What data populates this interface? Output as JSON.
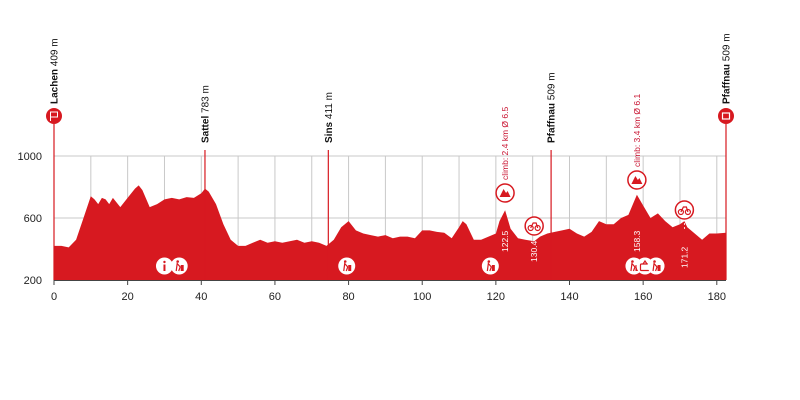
{
  "chart_data": {
    "type": "area",
    "xlabel": "",
    "ylabel": "",
    "x_ticks": [
      0,
      20,
      40,
      60,
      80,
      100,
      120,
      140,
      160,
      180
    ],
    "y_ticks": [
      200,
      600,
      1000
    ],
    "xlim": [
      0,
      182.5
    ],
    "ylim": [
      200,
      1000
    ],
    "colors": {
      "fill": "#d71920",
      "marker": "#d71920",
      "grid": "#c8c8c8"
    },
    "profile": {
      "x": [
        0,
        2,
        4,
        6,
        8,
        10,
        11,
        12,
        13,
        14,
        15,
        16,
        18,
        20,
        22,
        23,
        24,
        26,
        28,
        30,
        32,
        34,
        36,
        38,
        40,
        41,
        42,
        44,
        46,
        48,
        50,
        52,
        54,
        56,
        58,
        60,
        62,
        64,
        66,
        68,
        70,
        72,
        74,
        76,
        78,
        80,
        82,
        84,
        86,
        88,
        90,
        92,
        94,
        96,
        98,
        100,
        102,
        104,
        106,
        108,
        110,
        111,
        112,
        114,
        116,
        118,
        120,
        121,
        122.5,
        124,
        126,
        128,
        130.4,
        132,
        134,
        136,
        138,
        140,
        142,
        144,
        146,
        148,
        150,
        152,
        154,
        156,
        158.3,
        160,
        162,
        164,
        166,
        168,
        170,
        171.2,
        172,
        174,
        176,
        178,
        180,
        182.5
      ],
      "y": [
        420,
        420,
        410,
        460,
        600,
        740,
        720,
        690,
        730,
        720,
        690,
        730,
        670,
        730,
        790,
        810,
        780,
        670,
        690,
        720,
        730,
        720,
        735,
        730,
        760,
        790,
        770,
        690,
        560,
        460,
        420,
        420,
        440,
        460,
        440,
        450,
        440,
        450,
        460,
        440,
        450,
        440,
        420,
        460,
        540,
        580,
        520,
        500,
        490,
        480,
        490,
        470,
        480,
        480,
        470,
        520,
        520,
        510,
        505,
        470,
        540,
        580,
        560,
        460,
        460,
        480,
        500,
        580,
        650,
        530,
        470,
        460,
        450,
        480,
        500,
        510,
        520,
        530,
        500,
        480,
        510,
        580,
        560,
        560,
        600,
        620,
        750,
        680,
        600,
        630,
        580,
        540,
        560,
        580,
        540,
        500,
        460,
        500,
        500,
        505
      ]
    },
    "places": [
      {
        "km": 0,
        "name": "Lachen",
        "alt": "409 m",
        "type": "start"
      },
      {
        "km": 41,
        "name": "Sattel",
        "alt": "783 m",
        "type": "town"
      },
      {
        "km": 74.5,
        "name": "Sins",
        "alt": "411 m",
        "type": "town"
      },
      {
        "km": 135,
        "name": "Pfaffnau",
        "alt": "509 m",
        "type": "town"
      },
      {
        "km": 182.5,
        "name": "Pfaffnau",
        "alt": "509 m",
        "type": "finish"
      }
    ],
    "climbs": [
      {
        "km": 122.5,
        "label": "climb: 2.4 km Ø 6.5",
        "km_label": "122.5"
      },
      {
        "km": 158.3,
        "label": "climb: 3.4 km Ø 6.1",
        "km_label": "158.3"
      }
    ],
    "sprints": [
      {
        "km": 130.4,
        "km_label": "130.4"
      },
      {
        "km": 171.2,
        "km_label": "171.2"
      }
    ],
    "service_icons": [
      {
        "km": 30,
        "icon": "info-icon"
      },
      {
        "km": 34,
        "icon": "waste-zone-icon"
      },
      {
        "km": 79.5,
        "icon": "waste-zone-icon"
      },
      {
        "km": 118.5,
        "icon": "waste-zone-icon"
      },
      {
        "km": 157.5,
        "icon": "waste-zone-icon"
      },
      {
        "km": 160.5,
        "icon": "feed-zone-icon"
      },
      {
        "km": 163.5,
        "icon": "waste-zone-icon"
      }
    ]
  }
}
